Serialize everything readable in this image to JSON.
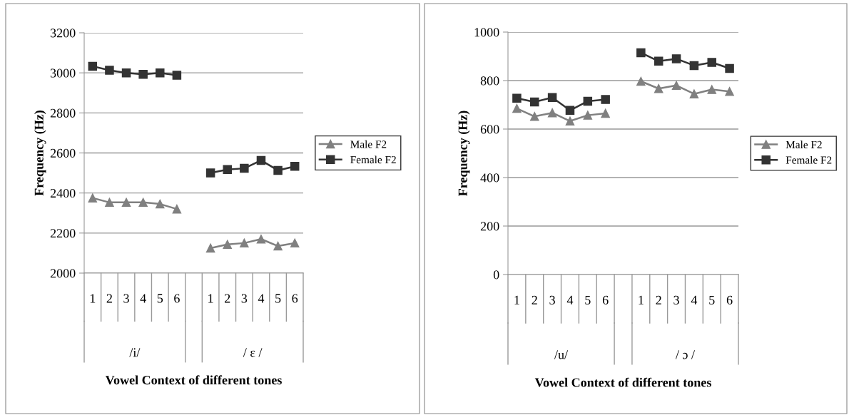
{
  "chart_data": [
    {
      "type": "line",
      "xlabel": "Vowel Context of different tones",
      "ylabel": "Frequency (Hz)",
      "categories": [
        "1",
        "2",
        "3",
        "4",
        "5",
        "6",
        null,
        "1",
        "2",
        "3",
        "4",
        "5",
        "6"
      ],
      "annotations": [
        "/i/",
        "/ ɛ /"
      ],
      "ylim": [
        2000,
        3200
      ],
      "yticks": [
        2000,
        2200,
        2400,
        2600,
        2800,
        3000,
        3200
      ],
      "grid": "y",
      "legend": "right",
      "series": [
        {
          "name": "Male F2",
          "color": "#808080",
          "marker": "triangle",
          "values": [
            2375,
            2353,
            2353,
            2353,
            2345,
            2320,
            null,
            2125,
            2143,
            2150,
            2170,
            2135,
            2150
          ]
        },
        {
          "name": "Female F2",
          "color": "#333333",
          "marker": "square",
          "values": [
            3033,
            3013,
            3000,
            2993,
            3000,
            2988,
            null,
            2500,
            2517,
            2523,
            2563,
            2513,
            2533
          ]
        }
      ]
    },
    {
      "type": "line",
      "xlabel": "Vowel Context of different tones",
      "ylabel": "Frequency (Hz)",
      "categories": [
        "1",
        "2",
        "3",
        "4",
        "5",
        "6",
        null,
        "1",
        "2",
        "3",
        "4",
        "5",
        "6"
      ],
      "annotations": [
        "/u/",
        "/ ɔ /"
      ],
      "ylim": [
        0,
        1000
      ],
      "yticks": [
        0,
        200,
        400,
        600,
        800,
        1000
      ],
      "grid": "y",
      "legend": "right",
      "series": [
        {
          "name": "Male F2",
          "color": "#808080",
          "marker": "triangle",
          "values": [
            685,
            652,
            667,
            633,
            657,
            665,
            null,
            797,
            767,
            780,
            745,
            763,
            755
          ]
        },
        {
          "name": "Female F2",
          "color": "#333333",
          "marker": "square",
          "values": [
            727,
            712,
            730,
            677,
            715,
            722,
            null,
            915,
            880,
            890,
            862,
            875,
            850
          ]
        }
      ]
    }
  ]
}
